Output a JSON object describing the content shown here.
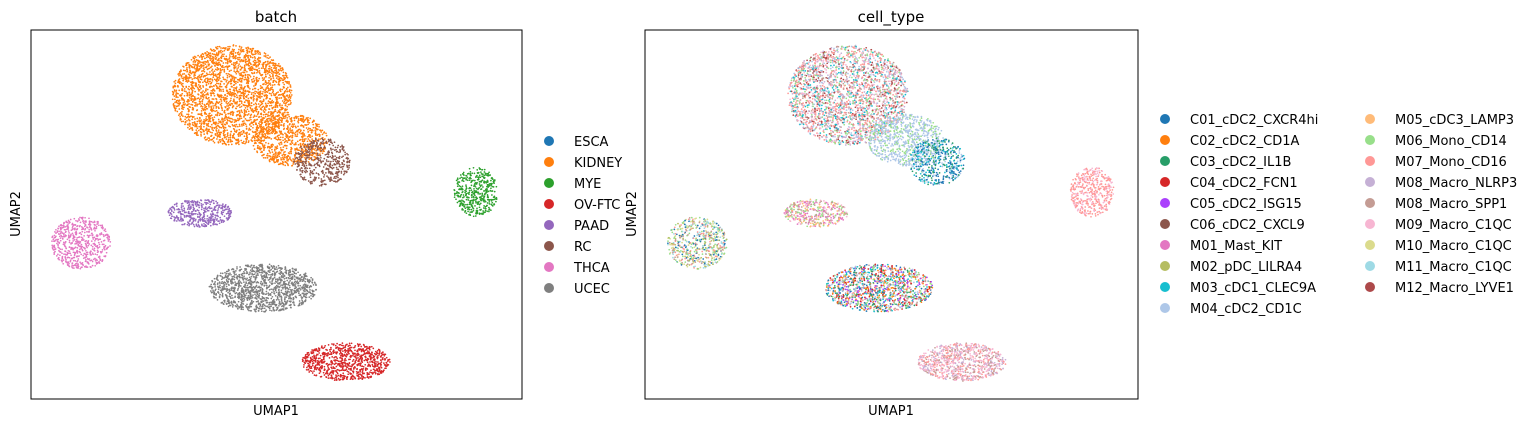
{
  "charts": [
    {
      "title": "batch",
      "xlabel": "UMAP1",
      "ylabel": "UMAP2",
      "legend": [
        "ESCA",
        "KIDNEY",
        "MYE",
        "OV-FTC",
        "PAAD",
        "RC",
        "THCA",
        "UCEC"
      ]
    },
    {
      "title": "cell_type",
      "xlabel": "UMAP1",
      "ylabel": "UMAP2",
      "legend": [
        "C01_cDC2_CXCR4hi",
        "C02_cDC2_CD1A",
        "C03_cDC2_IL1B",
        "C04_cDC2_FCN1",
        "C05_cDC2_ISG15",
        "C06_cDC2_CXCL9",
        "M01_Mast_KIT",
        "M02_pDC_LILRA4",
        "M03_cDC1_CLEC9A",
        "M04_cDC2_CD1C",
        "M05_cDC3_LAMP3",
        "M06_Mono_CD14",
        "M07_Mono_CD16",
        "M08_Macro_NLRP3",
        "M08_Macro_SPP1",
        "M09_Macro_C1QC",
        "M10_Macro_C1QC",
        "M11_Macro_C1QC",
        "M12_Macro_LYVE1"
      ]
    }
  ],
  "chart_data": [
    {
      "type": "scatter",
      "title": "batch",
      "xlabel": "UMAP1",
      "ylabel": "UMAP2",
      "grid": false,
      "ticks": false,
      "legend_position": "right",
      "series": [
        {
          "name": "ESCA",
          "color": "#1f77b4"
        },
        {
          "name": "KIDNEY",
          "color": "#ff7f0e"
        },
        {
          "name": "MYE",
          "color": "#2ca02c"
        },
        {
          "name": "OV-FTC",
          "color": "#d62728"
        },
        {
          "name": "PAAD",
          "color": "#9467bd"
        },
        {
          "name": "RC",
          "color": "#8c564b"
        },
        {
          "name": "THCA",
          "color": "#e377c2"
        },
        {
          "name": "UCEC",
          "color": "#7f7f7f"
        }
      ]
    },
    {
      "type": "scatter",
      "title": "cell_type",
      "xlabel": "UMAP1",
      "ylabel": "UMAP2",
      "grid": false,
      "ticks": false,
      "legend_position": "right, 2 columns",
      "series": [
        {
          "name": "C01_cDC2_CXCR4hi",
          "color": "#1f77b4"
        },
        {
          "name": "C02_cDC2_CD1A",
          "color": "#ff7f0e"
        },
        {
          "name": "C03_cDC2_IL1B",
          "color": "#279e68"
        },
        {
          "name": "C04_cDC2_FCN1",
          "color": "#d62728"
        },
        {
          "name": "C05_cDC2_ISG15",
          "color": "#aa40fc"
        },
        {
          "name": "C06_cDC2_CXCL9",
          "color": "#8c564b"
        },
        {
          "name": "M01_Mast_KIT",
          "color": "#e377c2"
        },
        {
          "name": "M02_pDC_LILRA4",
          "color": "#b5bd61"
        },
        {
          "name": "M03_cDC1_CLEC9A",
          "color": "#17becf"
        },
        {
          "name": "M04_cDC2_CD1C",
          "color": "#aec7e8"
        },
        {
          "name": "M05_cDC3_LAMP3",
          "color": "#ffbb78"
        },
        {
          "name": "M06_Mono_CD14",
          "color": "#98df8a"
        },
        {
          "name": "M07_Mono_CD16",
          "color": "#ff9896"
        },
        {
          "name": "M08_Macro_NLRP3",
          "color": "#c5b0d5"
        },
        {
          "name": "M08_Macro_SPP1",
          "color": "#c49c94"
        },
        {
          "name": "M09_Macro_C1QC",
          "color": "#f7b6d2"
        },
        {
          "name": "M10_Macro_C1QC",
          "color": "#dbdb8d"
        },
        {
          "name": "M11_Macro_C1QC",
          "color": "#9edae5"
        },
        {
          "name": "M12_Macro_LYVE1",
          "color": "#ad494a"
        }
      ]
    }
  ]
}
